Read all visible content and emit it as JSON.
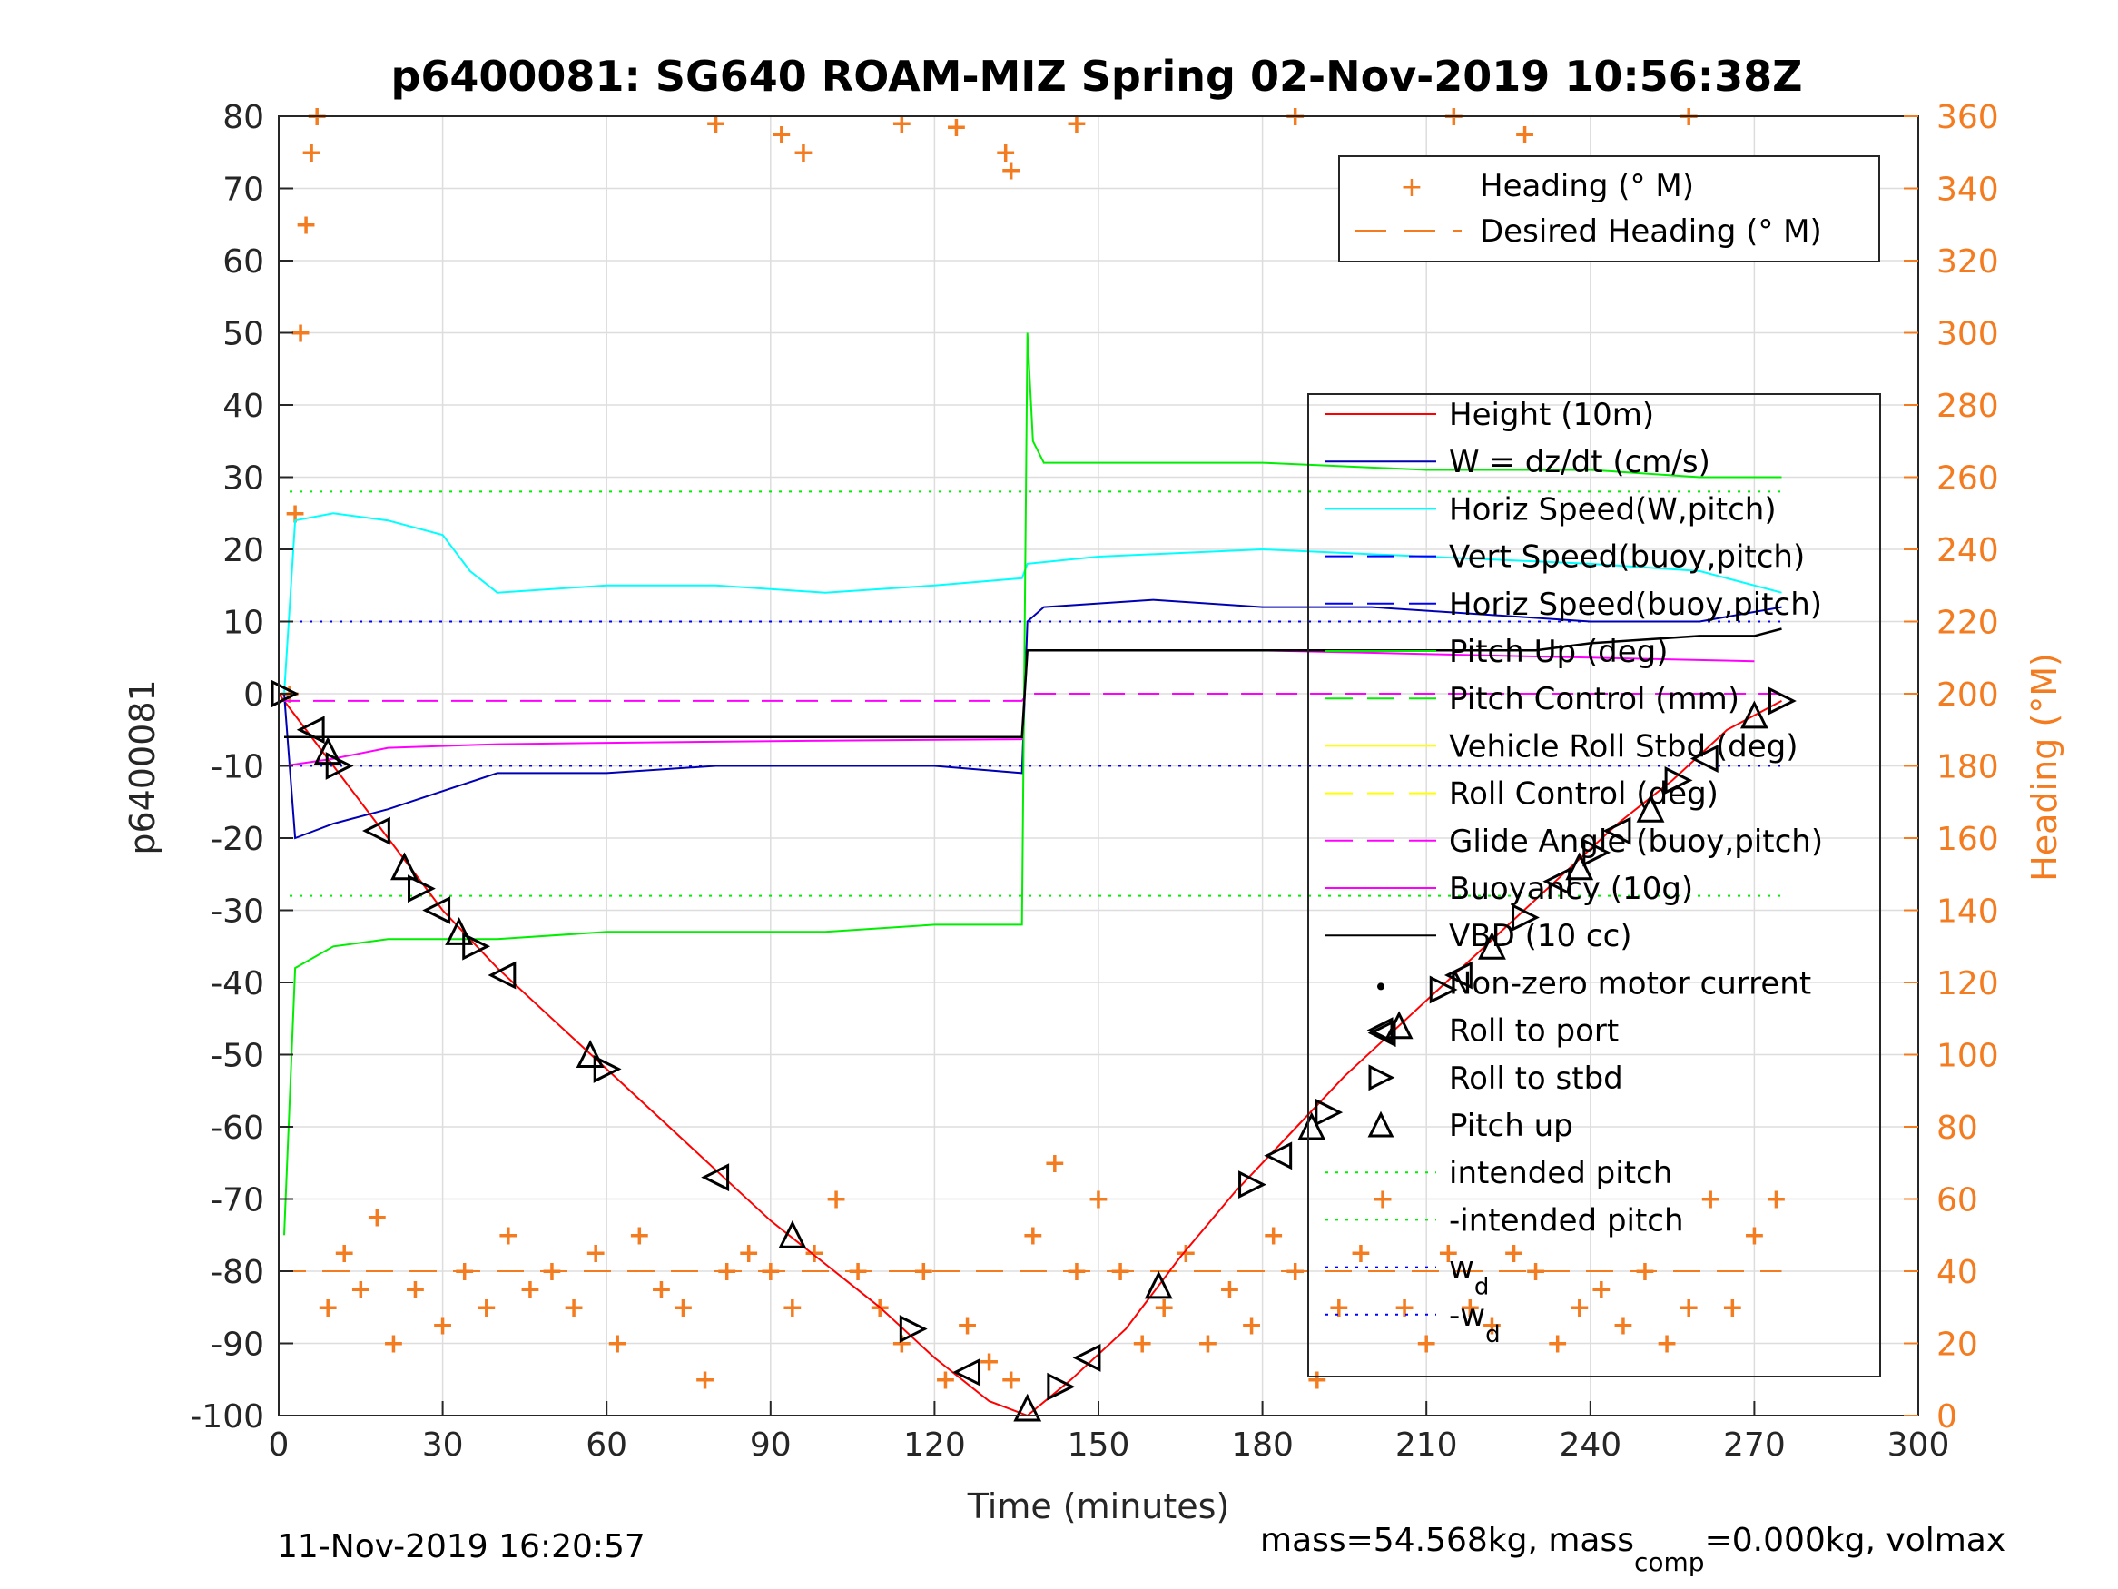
{
  "colors": {
    "heading": "#f47c20",
    "height": "#ff0000",
    "w": "#0000b4",
    "horiz_speed": "#00ffff",
    "vert_speed_buoy": "#0000ff",
    "pitch_up": "#00ee00",
    "roll": "#ffff00",
    "glide_angle": "#ff00ff",
    "vbd": "#000000",
    "grid": "#dddddd"
  },
  "chart_data": {
    "type": "line",
    "title": "p6400081: SG640 ROAM-MIZ Spring 02-Nov-2019 10:56:38Z",
    "xlabel": "Time (minutes)",
    "ylabel": "p6400081",
    "ylabel_right": "Heading (°M)",
    "xlim": [
      0,
      300
    ],
    "ylim": [
      -100,
      80
    ],
    "ylim_right": [
      0,
      360
    ],
    "x_ticks": [
      "0",
      "30",
      "60",
      "90",
      "120",
      "150",
      "180",
      "210",
      "240",
      "270",
      "300"
    ],
    "y_ticks": [
      "80",
      "70",
      "60",
      "50",
      "40",
      "30",
      "20",
      "10",
      "0",
      "-10",
      "-20",
      "-30",
      "-40",
      "-50",
      "-60",
      "-70",
      "-80",
      "-90",
      "-100"
    ],
    "y_right_ticks": [
      "360",
      "340",
      "320",
      "300",
      "280",
      "260",
      "240",
      "220",
      "200",
      "180",
      "160",
      "140",
      "120",
      "100",
      "80",
      "60",
      "40",
      "20",
      "0"
    ],
    "grid": true,
    "legend_top": {
      "placement": "top-right",
      "entries": [
        "Heading (° M)",
        "Desired Heading (° M)"
      ]
    },
    "legend_main": {
      "placement": "right",
      "entries": [
        "Height (10m)",
        "W = dz/dt (cm/s)",
        "Horiz Speed(W,pitch)",
        "Vert Speed(buoy,pitch)",
        "Horiz Speed(buoy,pitch)",
        "Pitch Up (deg)",
        "Pitch Control (mm)",
        "Vehicle Roll Stbd (deg)",
        "Roll Control (deg)",
        "Glide Angle (buoy,pitch)",
        "Buoyancy (10g)",
        "VBD (10 cc)",
        "Non-zero motor current",
        "Roll to port",
        "Roll to stbd",
        "Pitch up",
        "intended pitch",
        "-intended pitch",
        "w",
        "-w"
      ],
      "subscript": "d"
    },
    "reference_lines": {
      "intended_pitch": 28,
      "neg_intended_pitch": -28,
      "w_d": 10,
      "neg_w_d": -10,
      "desired_heading": 40
    },
    "series": [
      {
        "name": "Height (10m)",
        "x": [
          0,
          10,
          20,
          30,
          40,
          50,
          60,
          70,
          80,
          90,
          100,
          110,
          120,
          130,
          137,
          145,
          155,
          165,
          175,
          185,
          195,
          205,
          215,
          225,
          235,
          245,
          255,
          265,
          275
        ],
        "values": [
          0,
          -10,
          -20,
          -30,
          -38,
          -45,
          -52,
          -59,
          -66,
          -73,
          -79,
          -85,
          -92,
          -98,
          -100,
          -95,
          -88,
          -78,
          -69,
          -61,
          -53,
          -46,
          -39,
          -32,
          -25,
          -18,
          -12,
          -5,
          -1
        ]
      },
      {
        "name": "W = dz/dt (cm/s)",
        "x": [
          1,
          3,
          10,
          20,
          40,
          60,
          80,
          100,
          120,
          136,
          137,
          140,
          160,
          180,
          200,
          220,
          240,
          260,
          275
        ],
        "values": [
          0,
          -20,
          -18,
          -16,
          -11,
          -11,
          -10,
          -10,
          -10,
          -11,
          10,
          12,
          13,
          12,
          12,
          11,
          10,
          10,
          12
        ]
      },
      {
        "name": "Horiz Speed(W,pitch)",
        "x": [
          1,
          3,
          10,
          20,
          30,
          35,
          40,
          60,
          80,
          100,
          120,
          136,
          137,
          150,
          180,
          210,
          240,
          260,
          275
        ],
        "values": [
          0,
          24,
          25,
          24,
          22,
          17,
          14,
          15,
          15,
          14,
          15,
          16,
          18,
          19,
          20,
          19,
          18,
          17,
          14
        ]
      },
      {
        "name": "Pitch Up (deg)",
        "x": [
          1,
          3,
          10,
          20,
          40,
          60,
          80,
          100,
          120,
          136,
          137,
          138,
          140,
          160,
          180,
          210,
          240,
          260,
          275
        ],
        "values": [
          -75,
          -38,
          -35,
          -34,
          -34,
          -33,
          -33,
          -33,
          -32,
          -32,
          50,
          35,
          32,
          32,
          32,
          31,
          31,
          30,
          30
        ]
      },
      {
        "name": "Glide Angle (buoy,pitch)",
        "x": [
          0,
          136,
          137,
          275
        ],
        "values": [
          -1,
          -1,
          0,
          0
        ]
      },
      {
        "name": "Buoyancy (10g)",
        "x": [
          1,
          10,
          20,
          40,
          60,
          100,
          136,
          137,
          180,
          240,
          270
        ],
        "values": [
          -10,
          -9,
          -7.5,
          -7,
          -6.8,
          -6.5,
          -6.3,
          6,
          6,
          5,
          4.5
        ]
      },
      {
        "name": "VBD (10 cc)",
        "x": [
          1,
          136,
          137,
          210,
          230,
          240,
          260,
          270,
          275
        ],
        "values": [
          -6,
          -6,
          6,
          6,
          6,
          7,
          8,
          8,
          9
        ]
      }
    ],
    "heading_points": [
      [
        2,
        200
      ],
      [
        3,
        250
      ],
      [
        4,
        300
      ],
      [
        5,
        330
      ],
      [
        6,
        350
      ],
      [
        7,
        360
      ],
      [
        9,
        30
      ],
      [
        12,
        45
      ],
      [
        15,
        35
      ],
      [
        18,
        55
      ],
      [
        21,
        20
      ],
      [
        25,
        35
      ],
      [
        30,
        25
      ],
      [
        34,
        40
      ],
      [
        38,
        30
      ],
      [
        42,
        50
      ],
      [
        46,
        35
      ],
      [
        50,
        40
      ],
      [
        54,
        30
      ],
      [
        58,
        45
      ],
      [
        62,
        20
      ],
      [
        66,
        50
      ],
      [
        70,
        35
      ],
      [
        74,
        30
      ],
      [
        78,
        10
      ],
      [
        82,
        40
      ],
      [
        86,
        45
      ],
      [
        90,
        40
      ],
      [
        94,
        30
      ],
      [
        98,
        45
      ],
      [
        102,
        60
      ],
      [
        106,
        40
      ],
      [
        110,
        30
      ],
      [
        114,
        20
      ],
      [
        118,
        40
      ],
      [
        122,
        10
      ],
      [
        126,
        25
      ],
      [
        130,
        15
      ],
      [
        134,
        10
      ],
      [
        138,
        50
      ],
      [
        142,
        70
      ],
      [
        146,
        40
      ],
      [
        150,
        60
      ],
      [
        154,
        40
      ],
      [
        158,
        20
      ],
      [
        162,
        30
      ],
      [
        166,
        45
      ],
      [
        170,
        20
      ],
      [
        174,
        35
      ],
      [
        178,
        25
      ],
      [
        182,
        50
      ],
      [
        186,
        40
      ],
      [
        190,
        10
      ],
      [
        194,
        30
      ],
      [
        198,
        45
      ],
      [
        202,
        60
      ],
      [
        206,
        30
      ],
      [
        210,
        20
      ],
      [
        214,
        45
      ],
      [
        218,
        30
      ],
      [
        222,
        25
      ],
      [
        226,
        45
      ],
      [
        230,
        40
      ],
      [
        234,
        20
      ],
      [
        238,
        30
      ],
      [
        242,
        35
      ],
      [
        246,
        25
      ],
      [
        250,
        40
      ],
      [
        254,
        20
      ],
      [
        258,
        30
      ],
      [
        262,
        60
      ],
      [
        266,
        30
      ],
      [
        270,
        50
      ],
      [
        274,
        60
      ],
      [
        80,
        358
      ],
      [
        92,
        355
      ],
      [
        96,
        350
      ],
      [
        114,
        358
      ],
      [
        124,
        357
      ],
      [
        133,
        350
      ],
      [
        134,
        345
      ],
      [
        146,
        358
      ],
      [
        186,
        360
      ],
      [
        215,
        360
      ],
      [
        228,
        355
      ],
      [
        258,
        360
      ]
    ],
    "roll_markers": [
      [
        1,
        0
      ],
      [
        6,
        -5
      ],
      [
        9,
        -8
      ],
      [
        11,
        -10
      ],
      [
        18,
        -19
      ],
      [
        23,
        -24
      ],
      [
        26,
        -27
      ],
      [
        29,
        -30
      ],
      [
        33,
        -33
      ],
      [
        36,
        -35
      ],
      [
        41,
        -39
      ],
      [
        57,
        -50
      ],
      [
        60,
        -52
      ],
      [
        80,
        -67
      ],
      [
        94,
        -75
      ],
      [
        116,
        -88
      ],
      [
        126,
        -94
      ],
      [
        137,
        -99
      ],
      [
        143,
        -96
      ],
      [
        148,
        -92
      ],
      [
        161,
        -82
      ],
      [
        178,
        -68
      ],
      [
        183,
        -64
      ],
      [
        189,
        -60
      ],
      [
        192,
        -58
      ],
      [
        202,
        -47
      ],
      [
        205,
        -46
      ],
      [
        213,
        -41
      ],
      [
        216,
        -39
      ],
      [
        222,
        -35
      ],
      [
        228,
        -31
      ],
      [
        234,
        -26
      ],
      [
        238,
        -24
      ],
      [
        241,
        -22
      ],
      [
        245,
        -19
      ],
      [
        251,
        -16
      ],
      [
        256,
        -12
      ],
      [
        261,
        -9
      ],
      [
        270,
        -3
      ],
      [
        275,
        -1
      ]
    ]
  },
  "footer": {
    "timestamp": "11-Nov-2019 16:20:57",
    "mass_text": "mass=54.568kg, mass",
    "mass_sub": "comp",
    "mass_tail": "=0.000kg, volmax"
  }
}
